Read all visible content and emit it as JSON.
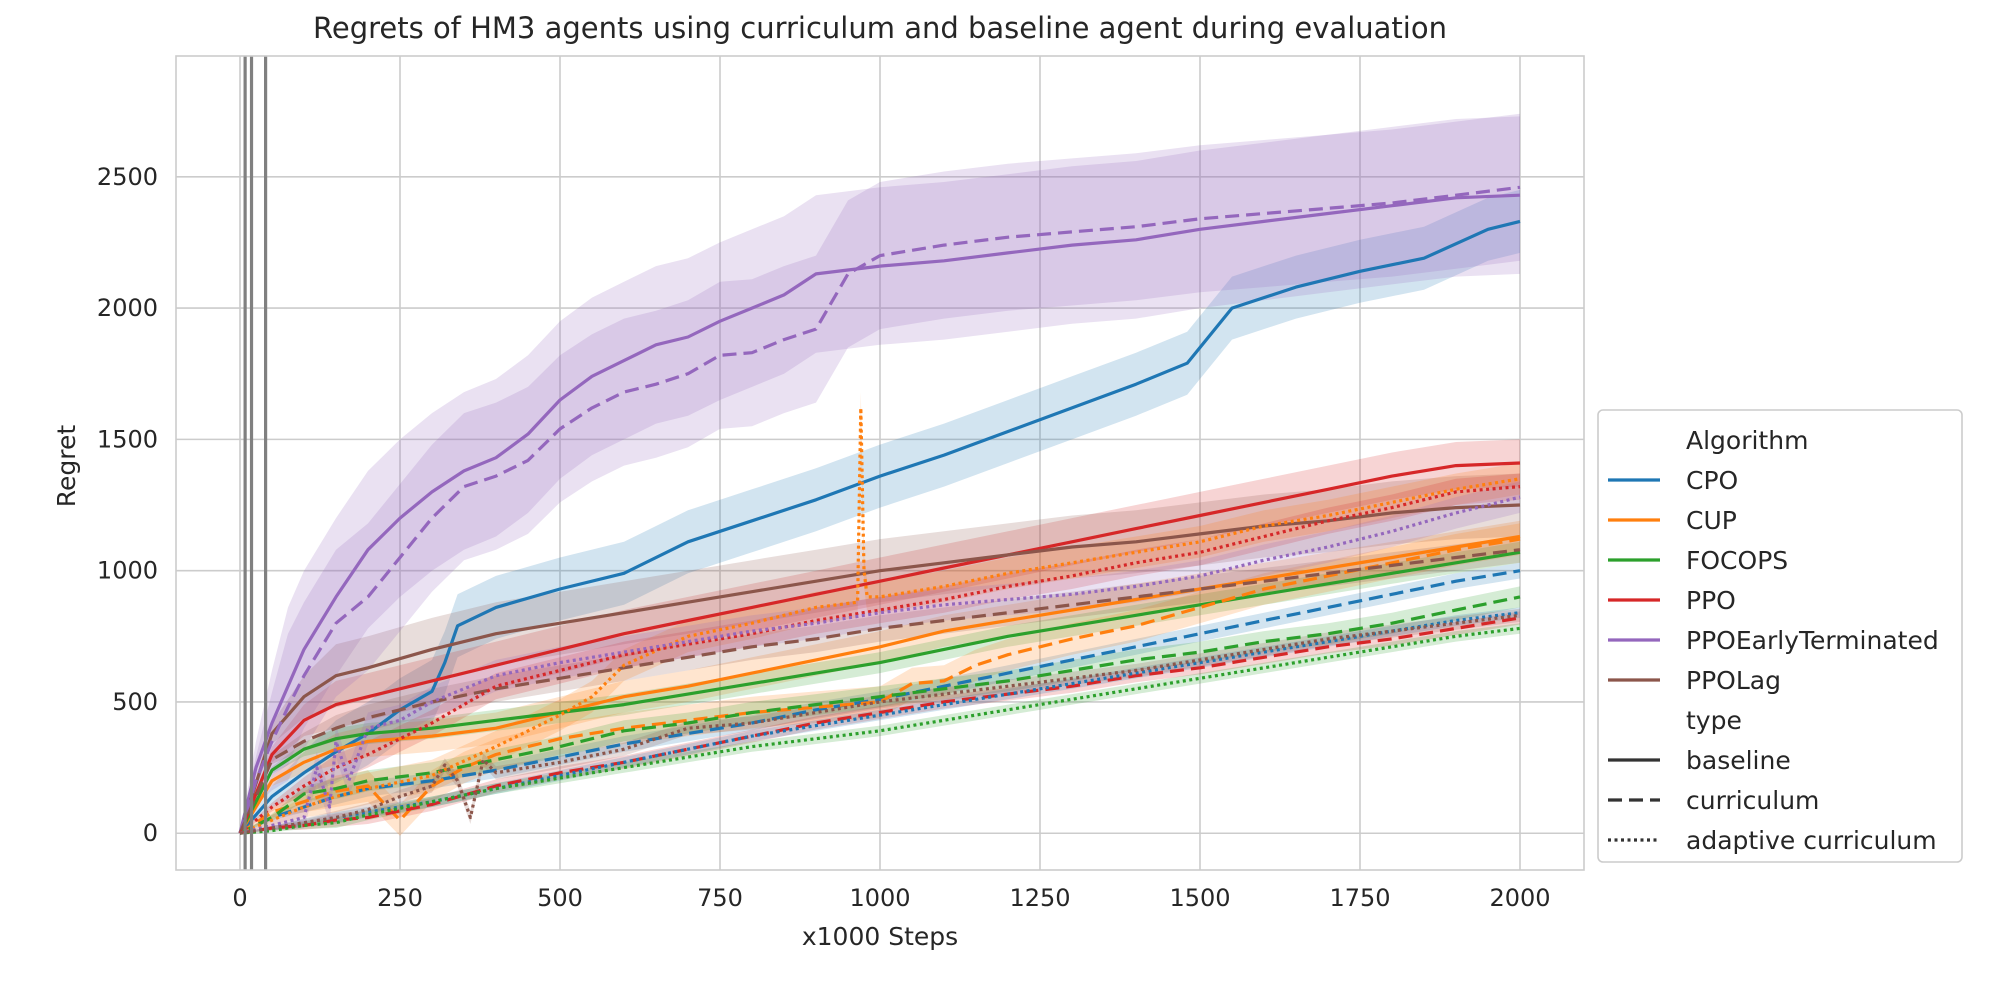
{
  "chart_data": {
    "type": "line",
    "title": "Regrets of HM3 agents using curriculum and baseline agent during evaluation",
    "xlabel": "x1000 Steps",
    "ylabel": "Regret",
    "xlim": [
      -100,
      2100
    ],
    "ylim": [
      -140,
      2960
    ],
    "xticks": [
      0,
      250,
      500,
      750,
      1000,
      1250,
      1500,
      1750,
      2000
    ],
    "yticks": [
      0,
      500,
      1000,
      1500,
      2000,
      2500
    ],
    "grid": true,
    "legend_position": "right",
    "vertical_lines_x": [
      8,
      18,
      40
    ],
    "legend": {
      "algorithm_title": "Algorithm",
      "type_title": "type",
      "algorithms": [
        {
          "name": "CPO",
          "color": "#1f77b4"
        },
        {
          "name": "CUP",
          "color": "#ff7f0e"
        },
        {
          "name": "FOCOPS",
          "color": "#2ca02c"
        },
        {
          "name": "PPO",
          "color": "#d62728"
        },
        {
          "name": "PPOEarlyTerminated",
          "color": "#9467bd"
        },
        {
          "name": "PPOLag",
          "color": "#8c564b"
        }
      ],
      "types": [
        {
          "name": "baseline",
          "dash": "solid"
        },
        {
          "name": "curriculum",
          "dash": "dashed"
        },
        {
          "name": "adaptive curriculum",
          "dash": "dotted"
        }
      ]
    },
    "series": [
      {
        "algorithm": "CPO",
        "type": "baseline",
        "color": "#1f77b4",
        "x": [
          0,
          50,
          100,
          150,
          200,
          250,
          300,
          320,
          340,
          400,
          500,
          600,
          700,
          800,
          900,
          1000,
          1100,
          1200,
          1300,
          1400,
          1480,
          1550,
          1650,
          1750,
          1850,
          1950,
          2000
        ],
        "y": [
          0,
          140,
          230,
          310,
          380,
          470,
          540,
          650,
          790,
          860,
          930,
          990,
          1110,
          1190,
          1270,
          1360,
          1440,
          1530,
          1620,
          1710,
          1790,
          2000,
          2080,
          2140,
          2190,
          2300,
          2330
        ],
        "band": 120
      },
      {
        "algorithm": "CUP",
        "type": "baseline",
        "color": "#ff7f0e",
        "x": [
          0,
          50,
          100,
          150,
          200,
          300,
          400,
          500,
          600,
          700,
          800,
          900,
          1000,
          1100,
          1200,
          1300,
          1400,
          1500,
          1600,
          1700,
          1800,
          1900,
          2000
        ],
        "y": [
          0,
          200,
          270,
          320,
          350,
          370,
          400,
          460,
          520,
          560,
          610,
          660,
          710,
          770,
          810,
          850,
          890,
          930,
          970,
          1010,
          1050,
          1090,
          1130
        ],
        "band": 60
      },
      {
        "algorithm": "FOCOPS",
        "type": "baseline",
        "color": "#2ca02c",
        "x": [
          0,
          50,
          100,
          150,
          200,
          300,
          400,
          500,
          600,
          700,
          800,
          900,
          1000,
          1100,
          1200,
          1300,
          1400,
          1500,
          1600,
          1700,
          1800,
          1900,
          2000
        ],
        "y": [
          0,
          240,
          320,
          360,
          380,
          400,
          430,
          460,
          490,
          530,
          570,
          610,
          650,
          700,
          750,
          790,
          830,
          870,
          910,
          950,
          990,
          1030,
          1070
        ],
        "band": 40
      },
      {
        "algorithm": "PPO",
        "type": "baseline",
        "color": "#d62728",
        "x": [
          0,
          50,
          100,
          150,
          200,
          300,
          400,
          500,
          600,
          700,
          800,
          900,
          1000,
          1100,
          1200,
          1300,
          1400,
          1500,
          1600,
          1700,
          1800,
          1900,
          2000
        ],
        "y": [
          0,
          300,
          430,
          490,
          520,
          580,
          640,
          700,
          760,
          810,
          860,
          910,
          960,
          1010,
          1060,
          1110,
          1160,
          1210,
          1260,
          1310,
          1360,
          1400,
          1410
        ],
        "band": 90
      },
      {
        "algorithm": "PPOEarlyTerminated",
        "type": "baseline",
        "color": "#9467bd",
        "x": [
          0,
          25,
          50,
          75,
          100,
          150,
          200,
          250,
          300,
          350,
          400,
          450,
          500,
          550,
          600,
          650,
          700,
          750,
          800,
          850,
          900,
          1000,
          1100,
          1200,
          1300,
          1400,
          1500,
          1600,
          1700,
          1800,
          1900,
          2000
        ],
        "y": [
          0,
          250,
          420,
          560,
          700,
          900,
          1080,
          1200,
          1300,
          1380,
          1430,
          1520,
          1650,
          1740,
          1800,
          1860,
          1890,
          1950,
          2000,
          2050,
          2130,
          2160,
          2180,
          2210,
          2240,
          2260,
          2300,
          2330,
          2360,
          2390,
          2420,
          2430
        ],
        "band": 300
      },
      {
        "algorithm": "PPOLag",
        "type": "baseline",
        "color": "#8c564b",
        "x": [
          0,
          50,
          100,
          150,
          200,
          300,
          400,
          500,
          600,
          700,
          800,
          900,
          1000,
          1100,
          1200,
          1300,
          1400,
          1500,
          1600,
          1700,
          1800,
          1900,
          2000
        ],
        "y": [
          0,
          380,
          520,
          600,
          630,
          700,
          760,
          800,
          840,
          880,
          920,
          960,
          1000,
          1030,
          1060,
          1090,
          1110,
          1140,
          1170,
          1190,
          1220,
          1240,
          1250
        ],
        "band": 120
      },
      {
        "algorithm": "CPO",
        "type": "curriculum",
        "color": "#1f77b4",
        "x": [
          0,
          50,
          100,
          150,
          200,
          300,
          400,
          500,
          600,
          700,
          800,
          900,
          1000,
          1100,
          1200,
          1300,
          1400,
          1500,
          1600,
          1700,
          1800,
          1900,
          2000
        ],
        "y": [
          0,
          60,
          100,
          140,
          170,
          200,
          240,
          290,
          340,
          380,
          420,
          470,
          510,
          560,
          610,
          660,
          710,
          760,
          810,
          860,
          910,
          960,
          1000
        ],
        "band": 30
      },
      {
        "algorithm": "CUP",
        "type": "curriculum",
        "color": "#ff7f0e",
        "x": [
          0,
          50,
          100,
          150,
          200,
          230,
          250,
          300,
          350,
          400,
          450,
          500,
          600,
          700,
          800,
          900,
          1000,
          1050,
          1100,
          1150,
          1200,
          1300,
          1400,
          1500,
          1600,
          1700,
          1800,
          1900,
          2000
        ],
        "y": [
          0,
          80,
          120,
          160,
          180,
          100,
          50,
          180,
          250,
          300,
          330,
          360,
          400,
          430,
          460,
          480,
          500,
          570,
          580,
          640,
          680,
          740,
          790,
          860,
          930,
          980,
          1030,
          1080,
          1120
        ],
        "band": 60
      },
      {
        "algorithm": "FOCOPS",
        "type": "curriculum",
        "color": "#2ca02c",
        "x": [
          0,
          50,
          100,
          150,
          200,
          300,
          400,
          500,
          600,
          700,
          800,
          900,
          1000,
          1100,
          1200,
          1300,
          1400,
          1500,
          1600,
          1700,
          1800,
          1900,
          2000
        ],
        "y": [
          0,
          60,
          150,
          170,
          200,
          230,
          280,
          330,
          390,
          420,
          460,
          490,
          520,
          550,
          580,
          620,
          660,
          690,
          730,
          760,
          800,
          850,
          900
        ],
        "band": 40
      },
      {
        "algorithm": "PPO",
        "type": "curriculum",
        "color": "#d62728",
        "x": [
          0,
          50,
          100,
          150,
          200,
          300,
          400,
          500,
          600,
          700,
          800,
          900,
          1000,
          1100,
          1200,
          1300,
          1400,
          1500,
          1600,
          1700,
          1800,
          1900,
          2000
        ],
        "y": [
          0,
          20,
          30,
          50,
          60,
          110,
          180,
          230,
          270,
          320,
          370,
          420,
          460,
          500,
          530,
          560,
          600,
          630,
          670,
          710,
          740,
          780,
          820
        ],
        "band": 25
      },
      {
        "algorithm": "PPOEarlyTerminated",
        "type": "curriculum",
        "color": "#9467bd",
        "x": [
          0,
          25,
          50,
          75,
          100,
          150,
          200,
          250,
          300,
          350,
          400,
          450,
          500,
          550,
          600,
          650,
          700,
          750,
          800,
          850,
          900,
          950,
          1000,
          1100,
          1200,
          1300,
          1400,
          1500,
          1600,
          1700,
          1800,
          1900,
          2000
        ],
        "y": [
          0,
          200,
          350,
          480,
          600,
          800,
          900,
          1050,
          1200,
          1320,
          1360,
          1420,
          1540,
          1620,
          1680,
          1710,
          1750,
          1820,
          1830,
          1880,
          1920,
          2130,
          2200,
          2240,
          2270,
          2290,
          2310,
          2340,
          2360,
          2380,
          2400,
          2430,
          2460
        ],
        "band": 280
      },
      {
        "algorithm": "PPOLag",
        "type": "curriculum",
        "color": "#8c564b",
        "x": [
          0,
          50,
          100,
          150,
          200,
          300,
          400,
          500,
          600,
          700,
          800,
          900,
          1000,
          1100,
          1200,
          1300,
          1400,
          1500,
          1600,
          1700,
          1800,
          1900,
          2000
        ],
        "y": [
          0,
          280,
          350,
          400,
          440,
          500,
          550,
          590,
          630,
          670,
          710,
          740,
          780,
          810,
          840,
          870,
          900,
          930,
          960,
          990,
          1020,
          1050,
          1080
        ],
        "band": 50
      },
      {
        "algorithm": "CPO",
        "type": "adaptive curriculum",
        "color": "#1f77b4",
        "x": [
          0,
          50,
          100,
          150,
          200,
          300,
          400,
          500,
          600,
          700,
          800,
          900,
          1000,
          1100,
          1200,
          1300,
          1400,
          1500,
          1600,
          1700,
          1800,
          1900,
          2000
        ],
        "y": [
          0,
          20,
          40,
          60,
          80,
          120,
          170,
          220,
          270,
          320,
          370,
          410,
          450,
          490,
          530,
          570,
          610,
          650,
          690,
          730,
          770,
          810,
          840
        ],
        "band": 20
      },
      {
        "algorithm": "CUP",
        "type": "adaptive curriculum",
        "color": "#ff7f0e",
        "x": [
          0,
          50,
          100,
          150,
          200,
          300,
          400,
          500,
          550,
          600,
          700,
          800,
          900,
          965,
          970,
          975,
          980,
          1000,
          1100,
          1200,
          1300,
          1400,
          1500,
          1600,
          1700,
          1800,
          1900,
          2000
        ],
        "y": [
          0,
          50,
          100,
          140,
          170,
          220,
          330,
          450,
          520,
          640,
          750,
          800,
          860,
          880,
          1620,
          1000,
          900,
          900,
          940,
          990,
          1030,
          1070,
          1110,
          1170,
          1210,
          1260,
          1310,
          1350
        ],
        "band": 60
      },
      {
        "algorithm": "FOCOPS",
        "type": "adaptive curriculum",
        "color": "#2ca02c",
        "x": [
          0,
          50,
          100,
          150,
          200,
          300,
          400,
          500,
          600,
          700,
          800,
          900,
          1000,
          1100,
          1200,
          1300,
          1400,
          1500,
          1600,
          1700,
          1800,
          1900,
          2000
        ],
        "y": [
          0,
          10,
          30,
          40,
          70,
          120,
          170,
          210,
          250,
          290,
          330,
          360,
          390,
          430,
          470,
          510,
          550,
          590,
          630,
          670,
          710,
          750,
          780
        ],
        "band": 20
      },
      {
        "algorithm": "PPO",
        "type": "adaptive curriculum",
        "color": "#d62728",
        "x": [
          0,
          50,
          100,
          150,
          200,
          300,
          400,
          500,
          600,
          700,
          800,
          900,
          1000,
          1100,
          1200,
          1300,
          1400,
          1500,
          1600,
          1700,
          1800,
          1900,
          2000
        ],
        "y": [
          0,
          100,
          180,
          250,
          300,
          420,
          560,
          620,
          680,
          720,
          760,
          810,
          850,
          890,
          940,
          980,
          1030,
          1070,
          1130,
          1190,
          1240,
          1300,
          1320
        ],
        "band": 50
      },
      {
        "algorithm": "PPOEarlyTerminated",
        "type": "adaptive curriculum",
        "color": "#9467bd",
        "x": [
          0,
          50,
          100,
          120,
          140,
          150,
          170,
          200,
          250,
          300,
          400,
          500,
          600,
          700,
          800,
          900,
          1000,
          1100,
          1200,
          1300,
          1400,
          1500,
          1600,
          1700,
          1800,
          1900,
          2000
        ],
        "y": [
          0,
          30,
          60,
          250,
          100,
          350,
          200,
          400,
          430,
          500,
          600,
          650,
          690,
          730,
          770,
          800,
          840,
          870,
          890,
          910,
          940,
          980,
          1040,
          1090,
          1150,
          1220,
          1280
        ],
        "band": 60
      },
      {
        "algorithm": "PPOLag",
        "type": "adaptive curriculum",
        "color": "#8c564b",
        "x": [
          0,
          50,
          100,
          150,
          200,
          250,
          300,
          320,
          340,
          360,
          380,
          400,
          500,
          600,
          700,
          800,
          900,
          1000,
          1100,
          1200,
          1300,
          1400,
          1500,
          1600,
          1700,
          1800,
          1900,
          2000
        ],
        "y": [
          0,
          20,
          40,
          60,
          90,
          140,
          180,
          260,
          200,
          60,
          280,
          230,
          270,
          320,
          400,
          420,
          460,
          500,
          530,
          560,
          590,
          620,
          660,
          700,
          740,
          770,
          800,
          830
        ],
        "band": 25
      }
    ]
  }
}
